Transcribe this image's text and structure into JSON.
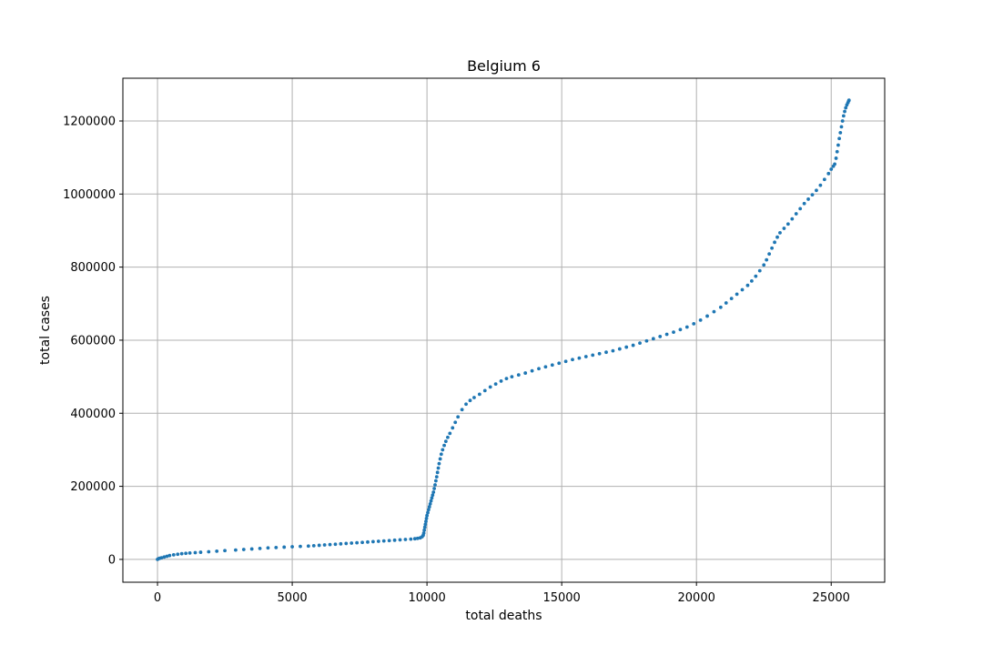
{
  "chart_data": {
    "type": "scatter",
    "title": "Belgium 6",
    "xlabel": "total deaths",
    "ylabel": "total cases",
    "xlim": [
      -1285,
      26985
    ],
    "ylim": [
      -62500,
      1317000
    ],
    "xticks": [
      0,
      5000,
      10000,
      15000,
      20000,
      25000
    ],
    "yticks": [
      0,
      200000,
      400000,
      600000,
      800000,
      1000000,
      1200000
    ],
    "xtick_labels": [
      "0",
      "5000",
      "10000",
      "15000",
      "20000",
      "25000"
    ],
    "ytick_labels": [
      "0",
      "200000",
      "400000",
      "600000",
      "800000",
      "1000000",
      "1200000"
    ],
    "grid": true,
    "point_color": "#1f77b4",
    "series": [
      {
        "points": [
          [
            0,
            0
          ],
          [
            30,
            1500
          ],
          [
            80,
            3000
          ],
          [
            150,
            4500
          ],
          [
            250,
            6500
          ],
          [
            350,
            8500
          ],
          [
            450,
            10500
          ],
          [
            600,
            12500
          ],
          [
            750,
            14000
          ],
          [
            900,
            15500
          ],
          [
            1050,
            16500
          ],
          [
            1200,
            17500
          ],
          [
            1400,
            18500
          ],
          [
            1600,
            19500
          ],
          [
            1900,
            21000
          ],
          [
            2200,
            22500
          ],
          [
            2500,
            24000
          ],
          [
            2900,
            25500
          ],
          [
            3200,
            27000
          ],
          [
            3500,
            28500
          ],
          [
            3800,
            30000
          ],
          [
            4100,
            31500
          ],
          [
            4400,
            32500
          ],
          [
            4700,
            33500
          ],
          [
            5000,
            34500
          ],
          [
            5300,
            35500
          ],
          [
            5600,
            36500
          ],
          [
            5800,
            37500
          ],
          [
            6000,
            38500
          ],
          [
            6200,
            39500
          ],
          [
            6400,
            40500
          ],
          [
            6600,
            41500
          ],
          [
            6800,
            42500
          ],
          [
            7000,
            43500
          ],
          [
            7200,
            44500
          ],
          [
            7400,
            45500
          ],
          [
            7600,
            46500
          ],
          [
            7800,
            47500
          ],
          [
            8000,
            48500
          ],
          [
            8200,
            49500
          ],
          [
            8400,
            50500
          ],
          [
            8600,
            51500
          ],
          [
            8800,
            52500
          ],
          [
            9000,
            53500
          ],
          [
            9200,
            54500
          ],
          [
            9400,
            55500
          ],
          [
            9550,
            56500
          ],
          [
            9650,
            57500
          ],
          [
            9750,
            59000
          ],
          [
            9820,
            62000
          ],
          [
            9860,
            66000
          ],
          [
            9880,
            72000
          ],
          [
            9900,
            80000
          ],
          [
            9920,
            88000
          ],
          [
            9940,
            96000
          ],
          [
            9960,
            104000
          ],
          [
            9980,
            112000
          ],
          [
            10000,
            120000
          ],
          [
            10030,
            128000
          ],
          [
            10060,
            136000
          ],
          [
            10090,
            144000
          ],
          [
            10120,
            152000
          ],
          [
            10150,
            160000
          ],
          [
            10180,
            168000
          ],
          [
            10210,
            176000
          ],
          [
            10240,
            184000
          ],
          [
            10270,
            194000
          ],
          [
            10300,
            204000
          ],
          [
            10330,
            215000
          ],
          [
            10360,
            226000
          ],
          [
            10390,
            238000
          ],
          [
            10420,
            250000
          ],
          [
            10450,
            262000
          ],
          [
            10490,
            275000
          ],
          [
            10530,
            288000
          ],
          [
            10580,
            300000
          ],
          [
            10640,
            312000
          ],
          [
            10700,
            323000
          ],
          [
            10770,
            334000
          ],
          [
            10850,
            345000
          ],
          [
            10950,
            360000
          ],
          [
            11050,
            375000
          ],
          [
            11150,
            390000
          ],
          [
            11300,
            410000
          ],
          [
            11450,
            425000
          ],
          [
            11600,
            435000
          ],
          [
            11750,
            443000
          ],
          [
            11950,
            452000
          ],
          [
            12150,
            462000
          ],
          [
            12350,
            472000
          ],
          [
            12550,
            480000
          ],
          [
            12750,
            488000
          ],
          [
            12950,
            495000
          ],
          [
            13150,
            500000
          ],
          [
            13400,
            505000
          ],
          [
            13650,
            510000
          ],
          [
            13900,
            516000
          ],
          [
            14150,
            522000
          ],
          [
            14400,
            527000
          ],
          [
            14650,
            532000
          ],
          [
            14900,
            537000
          ],
          [
            15150,
            542000
          ],
          [
            15400,
            547000
          ],
          [
            15650,
            551000
          ],
          [
            15900,
            555000
          ],
          [
            16150,
            559000
          ],
          [
            16400,
            563000
          ],
          [
            16650,
            567000
          ],
          [
            16900,
            571000
          ],
          [
            17150,
            576000
          ],
          [
            17400,
            581000
          ],
          [
            17650,
            586000
          ],
          [
            17900,
            592000
          ],
          [
            18150,
            598000
          ],
          [
            18400,
            604000
          ],
          [
            18650,
            610000
          ],
          [
            18900,
            616000
          ],
          [
            19150,
            622000
          ],
          [
            19400,
            629000
          ],
          [
            19650,
            636000
          ],
          [
            19900,
            645000
          ],
          [
            20150,
            655000
          ],
          [
            20400,
            666000
          ],
          [
            20650,
            678000
          ],
          [
            20900,
            690000
          ],
          [
            21100,
            702000
          ],
          [
            21300,
            714000
          ],
          [
            21500,
            726000
          ],
          [
            21700,
            738000
          ],
          [
            21900,
            750000
          ],
          [
            22050,
            762000
          ],
          [
            22200,
            775000
          ],
          [
            22350,
            790000
          ],
          [
            22500,
            806000
          ],
          [
            22600,
            820000
          ],
          [
            22700,
            836000
          ],
          [
            22800,
            852000
          ],
          [
            22900,
            868000
          ],
          [
            23000,
            882000
          ],
          [
            23100,
            894000
          ],
          [
            23250,
            906000
          ],
          [
            23400,
            918000
          ],
          [
            23550,
            932000
          ],
          [
            23700,
            946000
          ],
          [
            23850,
            960000
          ],
          [
            24000,
            974000
          ],
          [
            24150,
            986000
          ],
          [
            24300,
            998000
          ],
          [
            24450,
            1010000
          ],
          [
            24600,
            1024000
          ],
          [
            24750,
            1040000
          ],
          [
            24900,
            1056000
          ],
          [
            25000,
            1068000
          ],
          [
            25080,
            1076000
          ],
          [
            25130,
            1082000
          ],
          [
            25180,
            1098000
          ],
          [
            25220,
            1116000
          ],
          [
            25260,
            1134000
          ],
          [
            25300,
            1152000
          ],
          [
            25340,
            1168000
          ],
          [
            25380,
            1184000
          ],
          [
            25420,
            1200000
          ],
          [
            25460,
            1214000
          ],
          [
            25500,
            1226000
          ],
          [
            25540,
            1236000
          ],
          [
            25580,
            1244000
          ],
          [
            25620,
            1250000
          ],
          [
            25650,
            1255000
          ],
          [
            25660,
            1257000
          ]
        ]
      }
    ]
  }
}
